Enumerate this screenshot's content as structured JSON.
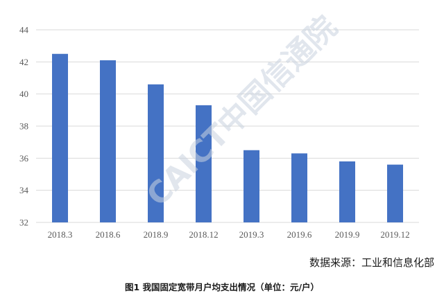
{
  "chart_data": {
    "type": "bar",
    "categories": [
      "2018.3",
      "2018.6",
      "2018.9",
      "2018.12",
      "2019.3",
      "2019.6",
      "2019.9",
      "2019.12"
    ],
    "values": [
      42.5,
      42.1,
      40.6,
      39.3,
      36.5,
      36.3,
      35.8,
      35.6
    ],
    "ylim": [
      32,
      44
    ],
    "yticks": [
      32,
      34,
      36,
      38,
      40,
      42,
      44
    ],
    "grid": true,
    "legend": "none",
    "bar_color": "#4472c4"
  },
  "watermark": "CAICT中国信通院",
  "source": "数据来源：工业和信息化部",
  "caption": "图1  我国固定宽带月户均支出情况（单位：元/户）"
}
